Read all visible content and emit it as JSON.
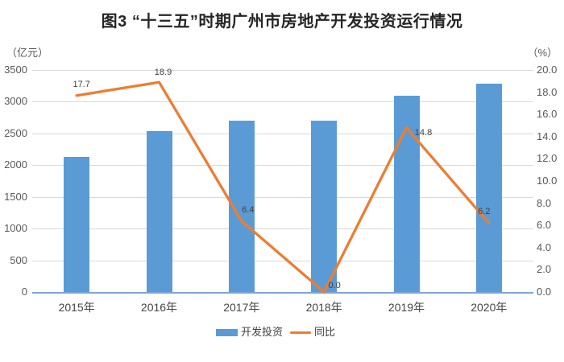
{
  "title": "图3 “十三五”时期广州市房地产开发投资运行情况",
  "chart_data": {
    "type": "bar",
    "subtype": "combo-bar-line",
    "title": "图3 “十三五”时期广州市房地产开发投资运行情况",
    "categories": [
      "2015年",
      "2016年",
      "2017年",
      "2018年",
      "2019年",
      "2020年"
    ],
    "series": [
      {
        "name": "开发投资",
        "type": "bar",
        "axis": "left",
        "color": "#5B9BD5",
        "values": [
          2130,
          2540,
          2700,
          2700,
          3100,
          3290
        ]
      },
      {
        "name": "同比",
        "type": "line",
        "axis": "right",
        "color": "#ED7D31",
        "values": [
          17.7,
          18.9,
          6.4,
          0.0,
          14.8,
          6.2
        ],
        "point_labels": [
          "17.7",
          "18.9",
          "6.4",
          "0.0",
          "14.8",
          "6.2"
        ]
      }
    ],
    "left_axis": {
      "unit": "（亿元）",
      "min": 0,
      "max": 3500,
      "step": 500,
      "tick_labels": [
        "3500",
        "3000",
        "2500",
        "2000",
        "1500",
        "1000",
        "500",
        "0"
      ]
    },
    "right_axis": {
      "unit": "（%）",
      "min": 0,
      "max": 20,
      "step": 2,
      "tick_labels": [
        "20.0",
        "18.0",
        "16.0",
        "14.0",
        "12.0",
        "10.0",
        "8.0",
        "6.0",
        "4.0",
        "2.0",
        "0.0"
      ]
    },
    "legend": {
      "entries": [
        "开发投资",
        "同比"
      ],
      "position": "bottom-center"
    },
    "grid": true,
    "colors": {
      "bar": "#5B9BD5",
      "line": "#ED7D31",
      "gridline": "#D9D9D9",
      "axis_line": "#7BA7D7",
      "tick_text": "#595959",
      "data_label": "#404040"
    }
  }
}
